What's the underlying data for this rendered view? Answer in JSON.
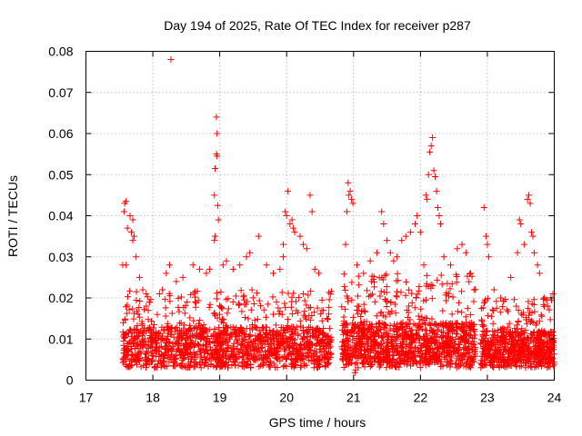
{
  "chart_data": {
    "type": "scatter",
    "title": "Day 194 of 2025, Rate Of TEC Index for receiver p287",
    "xlabel": "GPS time / hours",
    "ylabel": "ROTI / TECUs",
    "xlim": [
      17,
      24
    ],
    "ylim": [
      0,
      0.08
    ],
    "xticks": [
      17,
      18,
      19,
      20,
      21,
      22,
      23,
      24
    ],
    "yticks": [
      0,
      0.01,
      0.02,
      0.03,
      0.04,
      0.05,
      0.06,
      0.07,
      0.08
    ],
    "ytick_labels": [
      "0",
      "0.01",
      "0.02",
      "0.03",
      "0.04",
      "0.05",
      "0.06",
      "0.07",
      "0.08"
    ],
    "grid": true,
    "marker": "+",
    "series": [
      {
        "name": "ROTI",
        "color": "#ff0000",
        "points": [
          [
            17.58,
            0.043
          ],
          [
            17.6,
            0.0435
          ],
          [
            17.57,
            0.041
          ],
          [
            17.62,
            0.037
          ],
          [
            17.68,
            0.036
          ],
          [
            17.7,
            0.034
          ],
          [
            17.72,
            0.035
          ],
          [
            17.66,
            0.04
          ],
          [
            17.7,
            0.039
          ],
          [
            17.55,
            0.028
          ],
          [
            17.6,
            0.028
          ],
          [
            17.75,
            0.03
          ],
          [
            17.8,
            0.025
          ],
          [
            17.85,
            0.022
          ],
          [
            17.9,
            0.021
          ],
          [
            18.27,
            0.078
          ],
          [
            18.25,
            0.028
          ],
          [
            18.2,
            0.026
          ],
          [
            18.1,
            0.021
          ],
          [
            18.35,
            0.024
          ],
          [
            18.45,
            0.025
          ],
          [
            18.6,
            0.028
          ],
          [
            18.7,
            0.027
          ],
          [
            18.8,
            0.026
          ],
          [
            18.85,
            0.027
          ],
          [
            18.95,
            0.064
          ],
          [
            18.96,
            0.06
          ],
          [
            18.95,
            0.055
          ],
          [
            18.96,
            0.0545
          ],
          [
            18.93,
            0.0515
          ],
          [
            18.92,
            0.045
          ],
          [
            18.97,
            0.0425
          ],
          [
            18.98,
            0.039
          ],
          [
            18.93,
            0.035
          ],
          [
            18.92,
            0.034
          ],
          [
            19.05,
            0.028
          ],
          [
            19.1,
            0.029
          ],
          [
            19.2,
            0.027
          ],
          [
            19.3,
            0.028
          ],
          [
            19.4,
            0.03
          ],
          [
            19.45,
            0.031
          ],
          [
            19.58,
            0.035
          ],
          [
            19.7,
            0.028
          ],
          [
            19.8,
            0.026
          ],
          [
            19.9,
            0.027
          ],
          [
            19.95,
            0.03
          ],
          [
            20.02,
            0.046
          ],
          [
            19.98,
            0.041
          ],
          [
            20.0,
            0.04
          ],
          [
            20.05,
            0.038
          ],
          [
            20.08,
            0.039
          ],
          [
            20.1,
            0.037
          ],
          [
            20.12,
            0.036
          ],
          [
            19.95,
            0.033
          ],
          [
            20.2,
            0.035
          ],
          [
            20.25,
            0.033
          ],
          [
            20.3,
            0.032
          ],
          [
            20.35,
            0.045
          ],
          [
            20.38,
            0.041
          ],
          [
            20.42,
            0.027
          ],
          [
            20.48,
            0.026
          ],
          [
            20.55,
            0.017
          ],
          [
            20.6,
            0.015
          ],
          [
            20.88,
            0.033
          ],
          [
            20.9,
            0.041
          ],
          [
            20.92,
            0.048
          ],
          [
            20.93,
            0.045
          ],
          [
            20.95,
            0.046
          ],
          [
            20.97,
            0.044
          ],
          [
            20.99,
            0.043
          ],
          [
            21.05,
            0.028
          ],
          [
            21.15,
            0.026
          ],
          [
            21.25,
            0.029
          ],
          [
            21.35,
            0.031
          ],
          [
            21.42,
            0.041
          ],
          [
            21.45,
            0.038
          ],
          [
            21.5,
            0.034
          ],
          [
            21.55,
            0.031
          ],
          [
            21.6,
            0.029
          ],
          [
            21.65,
            0.03
          ],
          [
            21.72,
            0.034
          ],
          [
            21.78,
            0.035
          ],
          [
            21.85,
            0.036
          ],
          [
            21.92,
            0.038
          ],
          [
            21.95,
            0.04
          ],
          [
            22.0,
            0.036
          ],
          [
            22.05,
            0.028
          ],
          [
            22.08,
            0.045
          ],
          [
            22.1,
            0.044
          ],
          [
            22.12,
            0.05
          ],
          [
            22.14,
            0.0555
          ],
          [
            22.16,
            0.057
          ],
          [
            22.18,
            0.059
          ],
          [
            22.2,
            0.051
          ],
          [
            22.22,
            0.0495
          ],
          [
            22.24,
            0.046
          ],
          [
            22.26,
            0.042
          ],
          [
            22.28,
            0.04
          ],
          [
            22.3,
            0.038
          ],
          [
            22.35,
            0.03
          ],
          [
            22.45,
            0.028
          ],
          [
            22.55,
            0.032
          ],
          [
            22.62,
            0.033
          ],
          [
            22.68,
            0.031
          ],
          [
            22.75,
            0.026
          ],
          [
            22.8,
            0.022
          ],
          [
            22.95,
            0.042
          ],
          [
            22.98,
            0.035
          ],
          [
            23.0,
            0.033
          ],
          [
            23.02,
            0.03
          ],
          [
            23.1,
            0.022
          ],
          [
            23.2,
            0.02
          ],
          [
            23.35,
            0.025
          ],
          [
            23.45,
            0.031
          ],
          [
            23.48,
            0.039
          ],
          [
            23.5,
            0.038
          ],
          [
            23.55,
            0.033
          ],
          [
            23.6,
            0.044
          ],
          [
            23.62,
            0.045
          ],
          [
            23.64,
            0.043
          ],
          [
            23.66,
            0.036
          ],
          [
            23.68,
            0.035
          ],
          [
            23.7,
            0.031
          ],
          [
            23.75,
            0.028
          ],
          [
            23.78,
            0.026
          ],
          [
            23.85,
            0.02
          ],
          [
            23.9,
            0.018
          ],
          [
            23.95,
            0.02
          ],
          [
            23.98,
            0.021
          ],
          [
            21.03,
            0.0025
          ],
          [
            21.02,
            0.0018
          ]
        ],
        "dense_bands": [
          {
            "x_start": 17.55,
            "x_end": 20.67,
            "y_min": 0.003,
            "y_max": 0.022,
            "y_center": 0.009,
            "count": 1400
          },
          {
            "x_start": 20.82,
            "x_end": 22.82,
            "y_min": 0.003,
            "y_max": 0.026,
            "y_center": 0.01,
            "count": 1100
          },
          {
            "x_start": 22.9,
            "x_end": 24.0,
            "y_min": 0.003,
            "y_max": 0.02,
            "y_center": 0.008,
            "count": 650
          }
        ]
      }
    ]
  }
}
